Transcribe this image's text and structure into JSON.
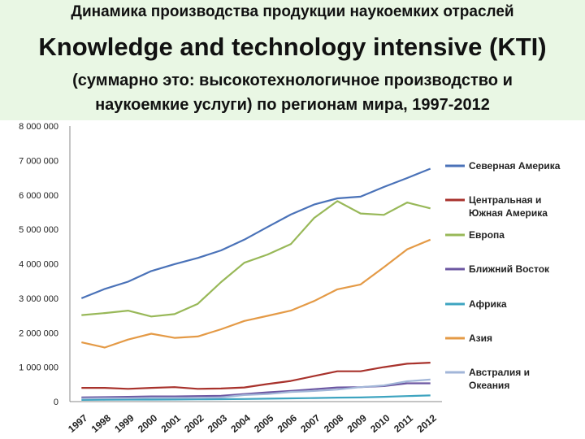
{
  "chart_data": {
    "type": "line",
    "title_ru": "Динамика производства продукции наукоемких отраслей",
    "title_en": "Knowledge and technology intensive (KTI)",
    "subtitle_line1": "(суммарно это: высокотехнологичное производство и",
    "subtitle_line2": "наукоемкие услуги) по регионам мира, 1997-2012",
    "ylim": [
      0,
      8000000
    ],
    "yticks": [
      "0",
      "1 000 000",
      "2 000 000",
      "3 000 000",
      "4 000 000",
      "5 000 000",
      "6 000 000",
      "7 000 000",
      "8 000 000"
    ],
    "x": [
      "1997",
      "1998",
      "1999",
      "2000",
      "2001",
      "2002",
      "2003",
      "2004",
      "2005",
      "2006",
      "2007",
      "2008",
      "2009",
      "2010",
      "2011",
      "2012"
    ],
    "grid": false,
    "legend_position": "right",
    "series": [
      {
        "name": "Северная Америка",
        "color": "#4a72b8",
        "values": [
          3000000,
          3270000,
          3480000,
          3790000,
          3990000,
          4170000,
          4390000,
          4700000,
          5070000,
          5430000,
          5720000,
          5900000,
          5950000,
          6230000,
          6490000,
          6760000
        ]
      },
      {
        "name": "Центральная и Южная Америка",
        "color": "#a8322c",
        "values": [
          400000,
          400000,
          370000,
          400000,
          420000,
          370000,
          380000,
          410000,
          510000,
          600000,
          740000,
          880000,
          880000,
          1000000,
          1100000,
          1130000
        ]
      },
      {
        "name": "Европа",
        "color": "#98b858",
        "values": [
          2510000,
          2570000,
          2640000,
          2470000,
          2540000,
          2840000,
          3470000,
          4030000,
          4270000,
          4570000,
          5330000,
          5820000,
          5460000,
          5420000,
          5780000,
          5610000
        ]
      },
      {
        "name": "Ближний Восток",
        "color": "#6c57a2",
        "values": [
          120000,
          130000,
          140000,
          150000,
          150000,
          160000,
          170000,
          220000,
          270000,
          310000,
          360000,
          410000,
          420000,
          450000,
          530000,
          530000
        ]
      },
      {
        "name": "Африка",
        "color": "#3ea4c0",
        "values": [
          50000,
          55000,
          60000,
          60000,
          62000,
          65000,
          70000,
          75000,
          85000,
          95000,
          105000,
          115000,
          120000,
          140000,
          160000,
          180000
        ]
      },
      {
        "name": "Азия",
        "color": "#e49a46",
        "values": [
          1720000,
          1570000,
          1800000,
          1970000,
          1850000,
          1890000,
          2100000,
          2340000,
          2490000,
          2640000,
          2920000,
          3260000,
          3400000,
          3900000,
          4420000,
          4700000
        ]
      },
      {
        "name": "Австралия и Океания",
        "color": "#a2b6d8",
        "values": [
          90000,
          100000,
          100000,
          110000,
          110000,
          110000,
          120000,
          190000,
          220000,
          280000,
          310000,
          350000,
          420000,
          470000,
          590000,
          640000
        ]
      }
    ],
    "legend": [
      {
        "lines": [
          "Северная Америка"
        ],
        "series": 0
      },
      {
        "lines": [
          "Центральная и",
          "Южная Америка"
        ],
        "series": 1
      },
      {
        "lines": [
          "Европа"
        ],
        "series": 2
      },
      {
        "lines": [
          "Ближний Восток"
        ],
        "series": 3
      },
      {
        "lines": [
          "Африка"
        ],
        "series": 4
      },
      {
        "lines": [
          "Азия"
        ],
        "series": 5
      },
      {
        "lines": [
          "Австралия и",
          "Океания"
        ],
        "series": 6
      }
    ]
  }
}
